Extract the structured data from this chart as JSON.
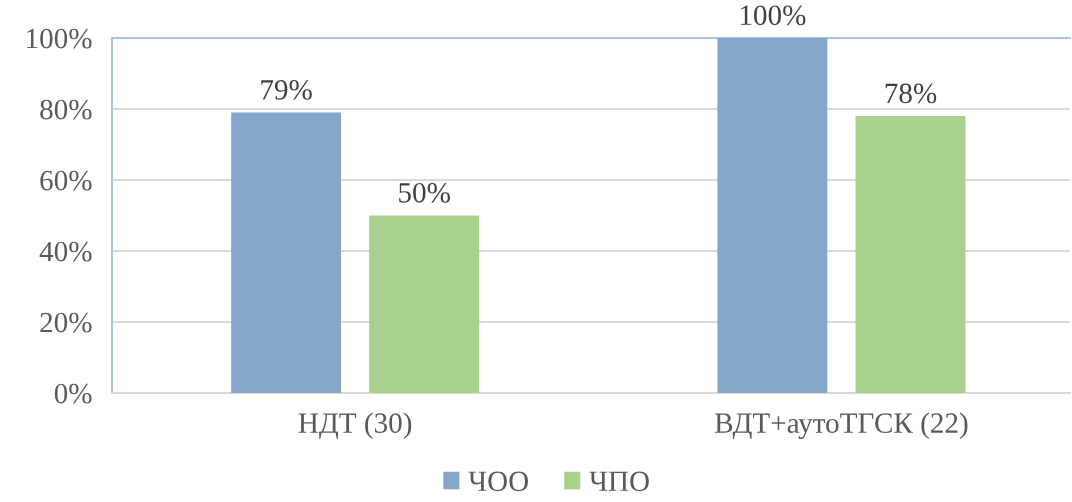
{
  "chart_data": {
    "type": "bar",
    "categories": [
      "НДТ (30)",
      "ВДТ+аутоТГСК (22)"
    ],
    "series": [
      {
        "name": "ЧОО",
        "color": "#84a7c9",
        "values": [
          79,
          100
        ],
        "value_labels": [
          "79%",
          "100%"
        ]
      },
      {
        "name": "ЧПО",
        "color": "#a9d18e",
        "values": [
          50,
          78
        ],
        "value_labels": [
          "50%",
          "78%"
        ]
      }
    ],
    "ylim": [
      0,
      100
    ],
    "yticks": [
      {
        "value": 0,
        "label": "0%"
      },
      {
        "value": 20,
        "label": "20%"
      },
      {
        "value": 40,
        "label": "40%"
      },
      {
        "value": 60,
        "label": "60%"
      },
      {
        "value": 80,
        "label": "80%"
      },
      {
        "value": 100,
        "label": "100%"
      }
    ],
    "grid": "y",
    "legend": "bottom"
  }
}
